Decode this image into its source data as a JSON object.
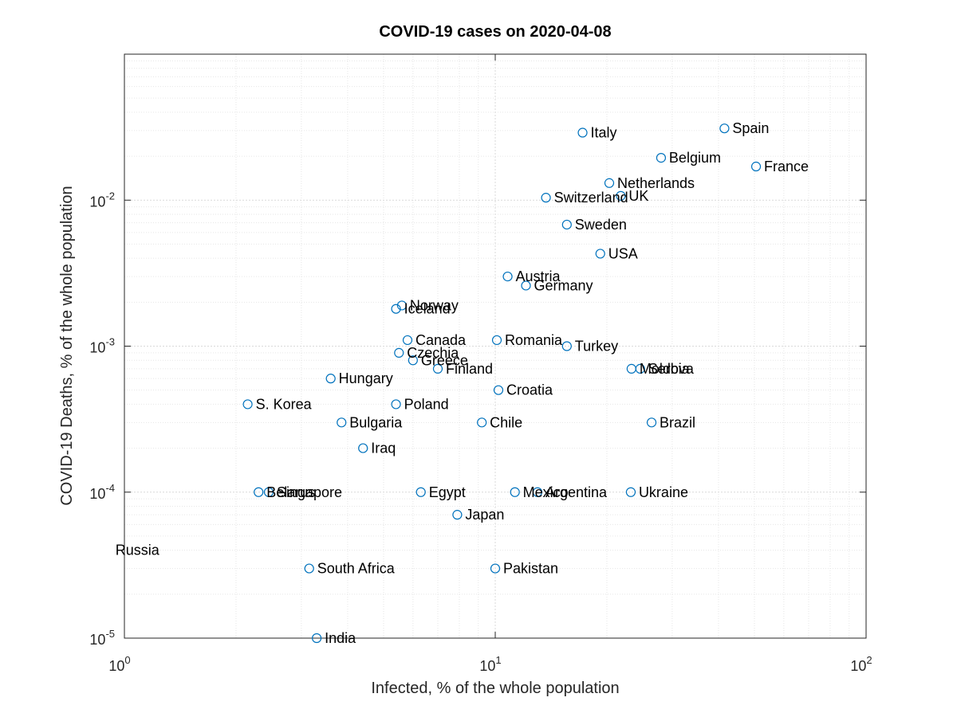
{
  "chart_data": {
    "type": "scatter",
    "title": "COVID-19 cases on 2020-04-08",
    "xlabel": "Infected, % of the whole population",
    "ylabel": "COVID-19 Deaths, % of the whole population",
    "x_scale": "log",
    "y_scale": "log",
    "xlim": [
      1,
      100
    ],
    "ylim": [
      1e-05,
      0.1
    ],
    "grid": true,
    "minor_grid": true,
    "x_ticks": [
      {
        "value": 1,
        "base": "10",
        "exp": "0"
      },
      {
        "value": 10,
        "base": "10",
        "exp": "1"
      },
      {
        "value": 100,
        "base": "10",
        "exp": "2"
      }
    ],
    "y_ticks": [
      {
        "value": 1e-05,
        "base": "10",
        "exp": "-5"
      },
      {
        "value": 0.0001,
        "base": "10",
        "exp": "-4"
      },
      {
        "value": 0.001,
        "base": "10",
        "exp": "-3"
      },
      {
        "value": 0.01,
        "base": "10",
        "exp": "-2"
      }
    ],
    "marker_color": "#0072bd",
    "points": [
      {
        "label": "Spain",
        "x": 41.5,
        "y": 0.031
      },
      {
        "label": "Italy",
        "x": 17.2,
        "y": 0.029
      },
      {
        "label": "Belgium",
        "x": 28.0,
        "y": 0.0195
      },
      {
        "label": "France",
        "x": 50.5,
        "y": 0.017
      },
      {
        "label": "Netherlands",
        "x": 20.3,
        "y": 0.0131
      },
      {
        "label": "Switzerland",
        "x": 13.7,
        "y": 0.0104
      },
      {
        "label": "UK",
        "x": 21.8,
        "y": 0.0107
      },
      {
        "label": "Sweden",
        "x": 15.6,
        "y": 0.0068
      },
      {
        "label": "USA",
        "x": 19.2,
        "y": 0.0043
      },
      {
        "label": "Austria",
        "x": 10.8,
        "y": 0.003
      },
      {
        "label": "Germany",
        "x": 12.1,
        "y": 0.0026
      },
      {
        "label": "Norway",
        "x": 5.6,
        "y": 0.0019
      },
      {
        "label": "Iceland",
        "x": 5.4,
        "y": 0.0018
      },
      {
        "label": "Canada",
        "x": 5.8,
        "y": 0.0011
      },
      {
        "label": "Romania",
        "x": 10.1,
        "y": 0.0011
      },
      {
        "label": "Turkey",
        "x": 15.6,
        "y": 0.001
      },
      {
        "label": "Czechia",
        "x": 5.5,
        "y": 0.0009
      },
      {
        "label": "Greece",
        "x": 6.0,
        "y": 0.0008
      },
      {
        "label": "Finland",
        "x": 7.0,
        "y": 0.0007
      },
      {
        "label": "Moldova",
        "x": 23.3,
        "y": 0.0007
      },
      {
        "label": "Serbia",
        "x": 24.6,
        "y": 0.0007
      },
      {
        "label": "Hungary",
        "x": 3.6,
        "y": 0.0006
      },
      {
        "label": "Croatia",
        "x": 10.2,
        "y": 0.0005
      },
      {
        "label": "S. Korea",
        "x": 2.15,
        "y": 0.0004
      },
      {
        "label": "Poland",
        "x": 5.4,
        "y": 0.0004
      },
      {
        "label": "Bulgaria",
        "x": 3.85,
        "y": 0.0003
      },
      {
        "label": "Chile",
        "x": 9.2,
        "y": 0.0003
      },
      {
        "label": "Brazil",
        "x": 26.4,
        "y": 0.0003
      },
      {
        "label": "Iraq",
        "x": 4.4,
        "y": 0.0002
      },
      {
        "label": "Belarus",
        "x": 2.3,
        "y": 0.0001
      },
      {
        "label": "Singapore",
        "x": 2.45,
        "y": 0.0001
      },
      {
        "label": "Egypt",
        "x": 6.3,
        "y": 0.0001
      },
      {
        "label": "Mexico",
        "x": 11.3,
        "y": 0.0001
      },
      {
        "label": "Argentina",
        "x": 13.0,
        "y": 0.0001
      },
      {
        "label": "Ukraine",
        "x": 23.2,
        "y": 0.0001
      },
      {
        "label": "Japan",
        "x": 7.9,
        "y": 7e-05
      },
      {
        "label": "Russia",
        "x": 0.9,
        "y": 4e-05
      },
      {
        "label": "South Africa",
        "x": 3.15,
        "y": 3e-05
      },
      {
        "label": "Pakistan",
        "x": 10.0,
        "y": 3e-05
      },
      {
        "label": "India",
        "x": 3.3,
        "y": 1e-05
      }
    ]
  }
}
